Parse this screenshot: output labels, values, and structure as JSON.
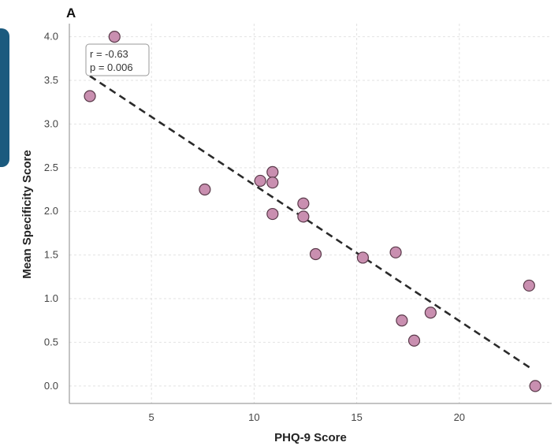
{
  "panel_label": "A",
  "annotation": {
    "line1": "r = -0.63",
    "line2": "p = 0.006"
  },
  "colors": {
    "point_fill": "#c98fb0",
    "point_stroke": "#5a3a4a",
    "trend_line": "#2a2a2a",
    "grid": "#e2e2e2",
    "accent_tab": "#1b5a7e"
  },
  "chart_data": {
    "type": "scatter",
    "title": "",
    "xlabel": "PHQ-9 Score",
    "ylabel": "Mean Specificity Score",
    "xlim": [
      1,
      24.5
    ],
    "ylim": [
      -0.2,
      4.15
    ],
    "x_ticks": [
      5,
      10,
      15,
      20
    ],
    "y_ticks": [
      0.0,
      0.5,
      1.0,
      1.5,
      2.0,
      2.5,
      3.0,
      3.5,
      4.0
    ],
    "grid": true,
    "points": [
      {
        "x": 2.0,
        "y": 3.32
      },
      {
        "x": 3.2,
        "y": 4.0
      },
      {
        "x": 7.6,
        "y": 2.25
      },
      {
        "x": 10.3,
        "y": 2.35
      },
      {
        "x": 10.9,
        "y": 2.45
      },
      {
        "x": 10.9,
        "y": 2.33
      },
      {
        "x": 10.9,
        "y": 1.97
      },
      {
        "x": 12.4,
        "y": 2.09
      },
      {
        "x": 12.4,
        "y": 1.94
      },
      {
        "x": 13.0,
        "y": 1.51
      },
      {
        "x": 15.3,
        "y": 1.47
      },
      {
        "x": 16.9,
        "y": 1.53
      },
      {
        "x": 17.2,
        "y": 0.75
      },
      {
        "x": 17.8,
        "y": 0.52
      },
      {
        "x": 18.6,
        "y": 0.84
      },
      {
        "x": 23.4,
        "y": 1.15
      },
      {
        "x": 23.7,
        "y": 0.0
      }
    ],
    "trend_line": {
      "x": [
        2.0,
        23.5
      ],
      "y": [
        3.55,
        0.2
      ]
    }
  }
}
